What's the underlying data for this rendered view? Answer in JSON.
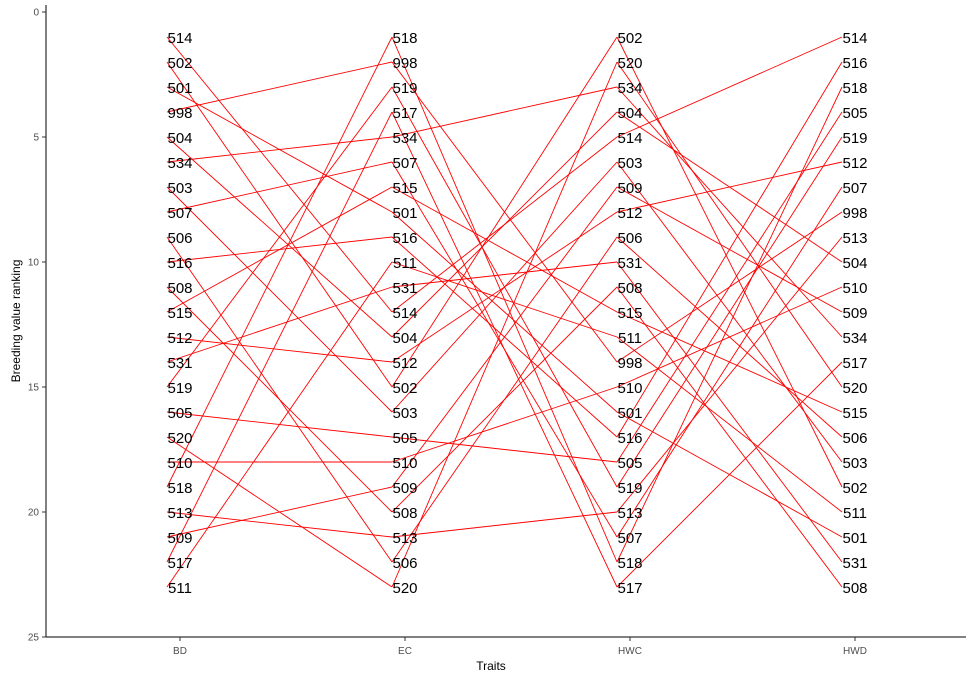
{
  "chart_data": {
    "type": "line",
    "xlabel": "Traits",
    "ylabel": "Breeding value ranking",
    "categories": [
      "BD",
      "EC",
      "HWC",
      "HWD"
    ],
    "y_reversed": true,
    "ylim": [
      0,
      25
    ],
    "yticks": [
      "0",
      "5",
      "10",
      "15",
      "20",
      "25"
    ],
    "grid": false,
    "line_color": "#ff0000",
    "rankings": {
      "BD": [
        "514",
        "502",
        "501",
        "998",
        "504",
        "534",
        "503",
        "507",
        "506",
        "516",
        "508",
        "515",
        "512",
        "531",
        "519",
        "505",
        "520",
        "510",
        "518",
        "513",
        "509",
        "517",
        "511"
      ],
      "EC": [
        "518",
        "998",
        "519",
        "517",
        "534",
        "507",
        "515",
        "501",
        "516",
        "511",
        "531",
        "514",
        "504",
        "512",
        "502",
        "503",
        "505",
        "510",
        "509",
        "508",
        "513",
        "506",
        "520"
      ],
      "HWC": [
        "502",
        "520",
        "534",
        "504",
        "514",
        "503",
        "509",
        "512",
        "506",
        "531",
        "508",
        "515",
        "511",
        "998",
        "510",
        "501",
        "516",
        "505",
        "519",
        "513",
        "507",
        "518",
        "517"
      ],
      "HWD": [
        "514",
        "516",
        "518",
        "505",
        "519",
        "512",
        "507",
        "998",
        "513",
        "504",
        "510",
        "509",
        "534",
        "517",
        "520",
        "515",
        "506",
        "503",
        "502",
        "511",
        "501",
        "531",
        "508"
      ]
    }
  }
}
